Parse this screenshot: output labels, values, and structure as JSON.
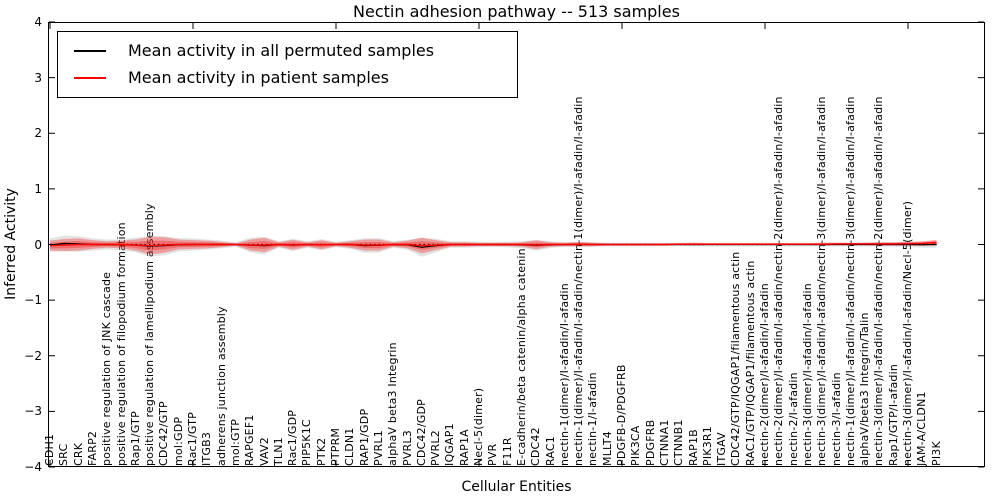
{
  "title": "Nectin adhesion pathway -- 513 samples",
  "axes": {
    "xlabel": "Cellular Entities",
    "ylabel": "Inferred Activity",
    "yticks": [
      "4",
      "3",
      "2",
      "1",
      "0",
      "−1",
      "−2",
      "−3",
      "−4"
    ],
    "ylim": [
      -4,
      4
    ]
  },
  "legend": {
    "entries": [
      {
        "label": "Mean activity in all permuted samples",
        "color": "#000000"
      },
      {
        "label": "Mean activity in patient samples",
        "color": "#ff0000"
      }
    ]
  },
  "colors": {
    "patient_line": "#ff0000",
    "permuted_line": "#000000",
    "patient_band": "#ff0000",
    "permuted_band": "#999999",
    "zero_line": "#000000"
  },
  "chart_data": {
    "type": "line",
    "title": "Nectin adhesion pathway -- 513 samples",
    "xlabel": "Cellular Entities",
    "ylabel": "Inferred Activity",
    "ylim": [
      -4,
      4
    ],
    "grid": false,
    "legend_position": "upper left",
    "zero_reference_line": 0,
    "categories": [
      "CDH1",
      "SRC",
      "CRK",
      "FARP2",
      "positive regulation of JNK cascade",
      "positive regulation of filopodium formation",
      "Rap1/GTP",
      "positive regulation of lamellipodium assembly",
      "CDC42/GTP",
      "mol:GDP",
      "Rac1/GTP",
      "ITGB3",
      "adherens junction assembly",
      "mol:GTP",
      "RAPGEF1",
      "VAV2",
      "TLN1",
      "Rac1/GDP",
      "PIP5K1C",
      "PTK2",
      "PTPRM",
      "CLDN1",
      "RAP1/GDP",
      "PVRL1",
      "alphaV beta3 Integrin",
      "PVRL3",
      "CDC42/GDP",
      "PVRL2",
      "IQGAP1",
      "RAP1A",
      "Necl-5(dimer)",
      "PVR",
      "F11R",
      "E-cadherin/beta catenin/alpha catenin",
      "CDC42",
      "RAC1",
      "nectin-1(dimer)/I-afadin/I-afadin",
      "nectin-1(dimer)/I-afadin/I-afadin/nectin-1(dimer)/I-afadin/I-afadin",
      "nectin-1/I-afadin",
      "MLLT4",
      "PDGFB-D/PDGFRB",
      "PIK3CA",
      "PDGFRB",
      "CTNNA1",
      "CTNNB1",
      "RAP1B",
      "PIK3R1",
      "ITGAV",
      "CDC42/GTP/IQGAP1/filamentous actin",
      "RAC1/GTP/IQGAP1/filamentous actin",
      "nectin-2(dimer)/I-afadin/I-afadin",
      "nectin-2(dimer)/I-afadin/I-afadin/nectin-2(dimer)/I-afadin/I-afadin",
      "nectin-2/I-afadin",
      "nectin-3(dimer)/I-afadin/I-afadin",
      "nectin-3(dimer)/I-afadin/I-afadin/nectin-3(dimer)/I-afadin/I-afadin",
      "nectin-3/I-afadin",
      "nectin-1(dimer)/I-afadin/I-afadin/nectin-3(dimer)/I-afadin/I-afadin",
      "alphaV/beta3 Integrin/Talin",
      "nectin-3(dimer)/I-afadin/I-afadin/nectin-2(dimer)/I-afadin/I-afadin",
      "Rap1/GTP/I-afadin",
      "nectin-3(dimer)/I-afadin/I-afadin/Necl-5(dimer)",
      "JAM-A/CLDN1",
      "PI3K"
    ],
    "series": [
      {
        "name": "Mean activity in all permuted samples",
        "color": "#000000",
        "values": [
          -0.01,
          0.02,
          0.01,
          0.0,
          0.0,
          -0.005,
          -0.01,
          -0.03,
          -0.02,
          -0.005,
          0.0,
          0.0,
          0.0,
          0.0,
          -0.01,
          -0.02,
          0.0,
          -0.01,
          0.0,
          -0.005,
          0.0,
          0.0,
          -0.02,
          -0.015,
          0.0,
          -0.005,
          -0.05,
          -0.02,
          0.0,
          0.0,
          0.0,
          0.0,
          0.0,
          -0.005,
          -0.015,
          -0.005,
          0.0,
          0.0,
          0.0,
          0.0,
          0.0,
          0.0,
          0.0,
          0.0,
          0.0,
          0.0,
          0.0,
          0.0,
          0.0,
          0.0,
          0.0,
          0.0,
          0.0,
          0.0,
          0.0,
          0.0,
          0.0,
          0.0,
          0.0,
          0.0,
          0.0,
          -0.005,
          0.0
        ]
      },
      {
        "name": "Mean activity in patient samples",
        "color": "#ff0000",
        "values": [
          -0.02,
          -0.01,
          0.0,
          0.0,
          0.0,
          0.0,
          -0.01,
          -0.02,
          -0.01,
          0.0,
          0.0,
          0.0,
          0.0,
          0.0,
          -0.01,
          -0.01,
          0.0,
          -0.005,
          0.0,
          -0.005,
          0.0,
          0.0,
          -0.01,
          -0.01,
          0.0,
          0.0,
          -0.02,
          -0.01,
          0.0,
          0.0,
          0.0,
          0.0,
          0.0,
          0.0,
          -0.005,
          0.0,
          0.0,
          0.005,
          0.0,
          0.0,
          0.0,
          0.0,
          0.0,
          0.0,
          0.005,
          0.005,
          0.005,
          0.005,
          0.005,
          0.005,
          0.005,
          0.005,
          0.005,
          0.005,
          0.005,
          0.01,
          0.01,
          0.01,
          0.01,
          0.01,
          0.015,
          0.02,
          0.035
        ]
      },
      {
        "name": "patient band half-width (std)",
        "color": "#ff0000",
        "values": [
          0.09,
          0.11,
          0.11,
          0.08,
          0.06,
          0.07,
          0.1,
          0.16,
          0.14,
          0.09,
          0.08,
          0.07,
          0.05,
          0.02,
          0.1,
          0.13,
          0.04,
          0.09,
          0.04,
          0.08,
          0.03,
          0.06,
          0.1,
          0.1,
          0.04,
          0.07,
          0.14,
          0.09,
          0.04,
          0.04,
          0.03,
          0.03,
          0.03,
          0.04,
          0.08,
          0.04,
          0.03,
          0.04,
          0.03,
          0.02,
          0.02,
          0.02,
          0.02,
          0.02,
          0.02,
          0.025,
          0.02,
          0.02,
          0.02,
          0.02,
          0.02,
          0.02,
          0.02,
          0.02,
          0.025,
          0.025,
          0.02,
          0.025,
          0.03,
          0.03,
          0.035,
          0.04,
          0.05
        ]
      },
      {
        "name": "permuted band half-width (std)",
        "color": "#999999",
        "values": [
          0.12,
          0.14,
          0.14,
          0.11,
          0.09,
          0.1,
          0.13,
          0.19,
          0.17,
          0.12,
          0.11,
          0.09,
          0.07,
          0.04,
          0.13,
          0.16,
          0.06,
          0.11,
          0.06,
          0.1,
          0.05,
          0.08,
          0.13,
          0.13,
          0.06,
          0.09,
          0.17,
          0.12,
          0.06,
          0.06,
          0.05,
          0.04,
          0.05,
          0.06,
          0.1,
          0.06,
          0.04,
          0.05,
          0.04,
          0.03,
          0.03,
          0.03,
          0.03,
          0.03,
          0.03,
          0.035,
          0.03,
          0.03,
          0.03,
          0.03,
          0.03,
          0.03,
          0.03,
          0.03,
          0.035,
          0.035,
          0.03,
          0.035,
          0.04,
          0.04,
          0.045,
          0.05,
          0.06
        ]
      }
    ]
  }
}
